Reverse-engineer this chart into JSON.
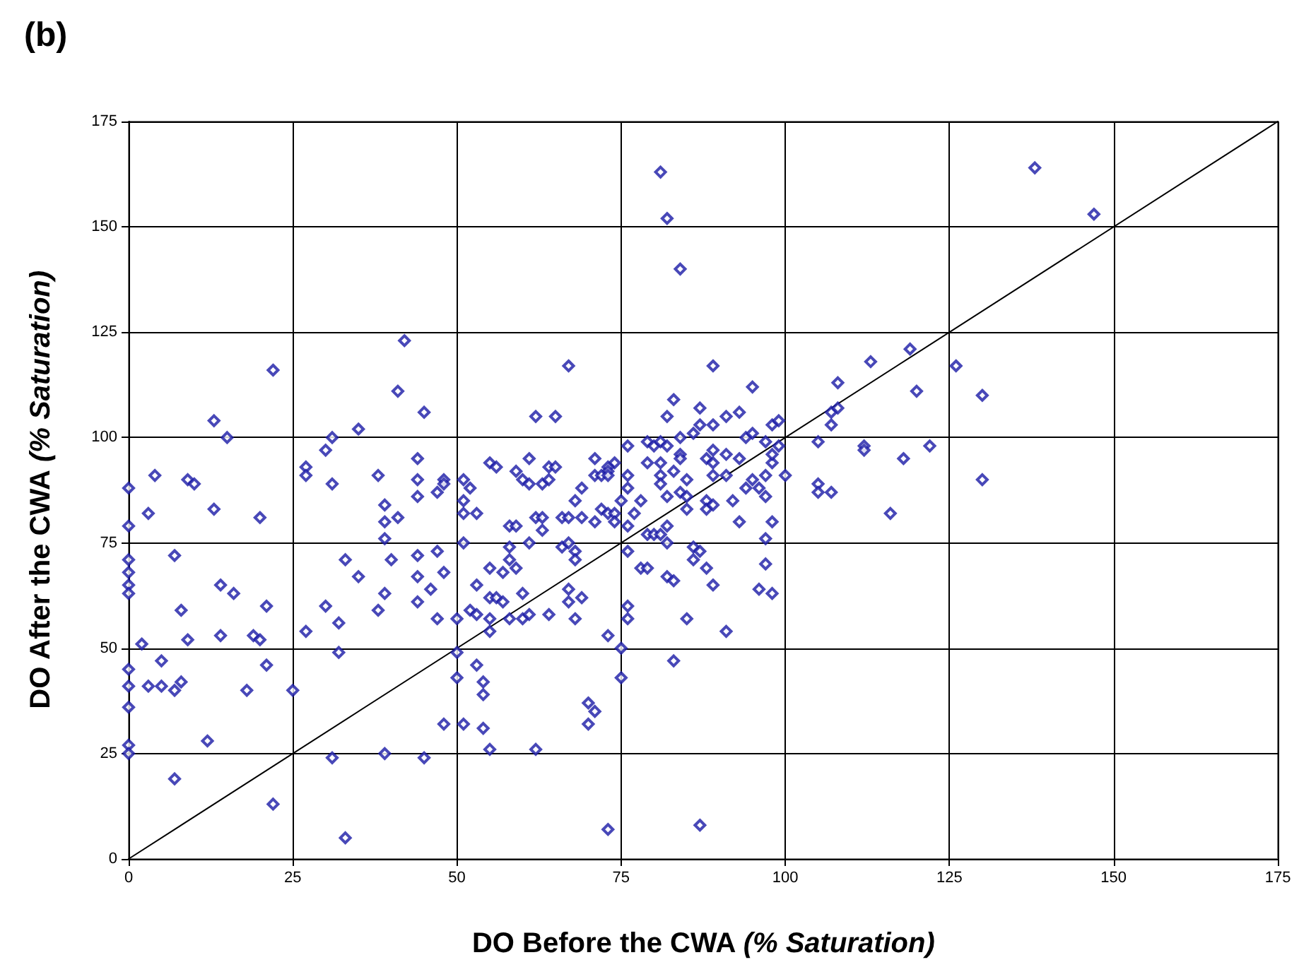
{
  "chart_data": {
    "type": "scatter",
    "title": "(b)",
    "xlabel": "DO Before the CWA (% Saturation)",
    "ylabel": "DO After the CWA (% Saturation)",
    "xlim": [
      0,
      175
    ],
    "ylim": [
      0,
      175
    ],
    "xticks": [
      0,
      25,
      50,
      75,
      100,
      125,
      150,
      175
    ],
    "yticks": [
      0,
      25,
      50,
      75,
      100,
      125,
      150,
      175
    ],
    "grid": true,
    "marker": "diamond",
    "series": [
      {
        "color": "#1a1aa6",
        "x": [
          0,
          3,
          13,
          20,
          0,
          7,
          0,
          0,
          0,
          0,
          14,
          16,
          8,
          21,
          2,
          9,
          14,
          19,
          20,
          5,
          0,
          0,
          0,
          3,
          5,
          7,
          8,
          18,
          21,
          0,
          0,
          12,
          7,
          22,
          27,
          25,
          31,
          39,
          45,
          33,
          30,
          32,
          32,
          33,
          35,
          38,
          39,
          39,
          39,
          39,
          40,
          41,
          44,
          47,
          44,
          44,
          44,
          46,
          47,
          48,
          47,
          48,
          51,
          50,
          50,
          50,
          51,
          53,
          52,
          53,
          51,
          51,
          53,
          55,
          55,
          55,
          55,
          53,
          54,
          54,
          54,
          55,
          56,
          57,
          57,
          58,
          59,
          58,
          60,
          58,
          60,
          61,
          58,
          59,
          61,
          62,
          63,
          63,
          64,
          62,
          66,
          67,
          68,
          68,
          67,
          67,
          69,
          68,
          70,
          70,
          71,
          73,
          73,
          66,
          67,
          68,
          69,
          69,
          71,
          72,
          73,
          74,
          74,
          75,
          76,
          76,
          78,
          79,
          76,
          76,
          75,
          75,
          77,
          78,
          79,
          80,
          81,
          82,
          82,
          82,
          82,
          83,
          85,
          83,
          86,
          87,
          86,
          88,
          89,
          87,
          84,
          85,
          85,
          88,
          88,
          22,
          13,
          15,
          4,
          9,
          10,
          42,
          41,
          45,
          35,
          31,
          30,
          27,
          27,
          31,
          38,
          44,
          44,
          48,
          48,
          51,
          52,
          67,
          62,
          65,
          55,
          56,
          61,
          59,
          64,
          65,
          60,
          61,
          63,
          64,
          71,
          74,
          73,
          73,
          71,
          72,
          73,
          76,
          79,
          81,
          79,
          76,
          76,
          81,
          83,
          81,
          82,
          84,
          82,
          83,
          80,
          81,
          84,
          86,
          87,
          87,
          82,
          84,
          84,
          88,
          81,
          85,
          138,
          147,
          89,
          95,
          89,
          91,
          93,
          94,
          95,
          98,
          99,
          97,
          99,
          89,
          91,
          89,
          93,
          98,
          98,
          100,
          97,
          91,
          89,
          95,
          94,
          96,
          105,
          107,
          107,
          108,
          108,
          113,
          112,
          112,
          118,
          122,
          119,
          120,
          126,
          130,
          130,
          105,
          107,
          105,
          116,
          97,
          92,
          89,
          93,
          98,
          97,
          97,
          96,
          98,
          91
        ],
        "values": [
          88,
          82,
          83,
          81,
          79,
          72,
          71,
          68,
          65,
          63,
          65,
          63,
          59,
          60,
          51,
          52,
          53,
          53,
          52,
          47,
          45,
          41,
          36,
          41,
          41,
          40,
          42,
          40,
          46,
          27,
          25,
          28,
          19,
          13,
          54,
          40,
          24,
          25,
          24,
          5,
          60,
          56,
          49,
          71,
          67,
          59,
          63,
          76,
          80,
          84,
          71,
          81,
          86,
          87,
          72,
          67,
          61,
          64,
          73,
          68,
          57,
          32,
          32,
          43,
          49,
          57,
          75,
          65,
          59,
          58,
          82,
          85,
          82,
          69,
          62,
          57,
          54,
          46,
          42,
          39,
          31,
          26,
          62,
          68,
          61,
          71,
          69,
          74,
          63,
          57,
          57,
          58,
          79,
          79,
          75,
          81,
          81,
          78,
          58,
          26,
          74,
          75,
          73,
          71,
          64,
          61,
          62,
          57,
          32,
          37,
          35,
          53,
          7,
          81,
          81,
          85,
          88,
          81,
          80,
          83,
          82,
          82,
          80,
          85,
          79,
          73,
          69,
          69,
          60,
          57,
          50,
          43,
          82,
          85,
          77,
          77,
          77,
          79,
          75,
          86,
          67,
          66,
          57,
          47,
          74,
          73,
          71,
          69,
          65,
          8,
          87,
          86,
          83,
          85,
          83,
          116,
          104,
          100,
          91,
          90,
          89,
          123,
          111,
          106,
          102,
          100,
          97,
          93,
          91,
          89,
          91,
          95,
          90,
          90,
          89,
          90,
          88,
          117,
          105,
          105,
          94,
          93,
          95,
          92,
          93,
          93,
          90,
          89,
          89,
          90,
          95,
          94,
          93,
          92,
          91,
          91,
          91,
          98,
          99,
          94,
          94,
          91,
          88,
          91,
          92,
          163,
          152,
          140,
          105,
          109,
          98,
          99,
          100,
          101,
          107,
          103,
          98,
          96,
          95,
          95,
          89,
          90,
          164,
          153,
          117,
          112,
          103,
          105,
          106,
          100,
          101,
          103,
          104,
          99,
          98,
          97,
          96,
          94,
          95,
          94,
          96,
          91,
          91,
          91,
          91,
          90,
          88,
          88,
          99,
          106,
          103,
          113,
          107,
          118,
          98,
          97,
          95,
          98,
          121,
          111,
          117,
          110,
          90,
          89,
          87,
          87,
          82,
          86,
          85,
          84,
          80,
          80,
          76,
          70,
          64,
          63,
          54
        ]
      },
      {
        "type": "line",
        "color": "#000000",
        "marker": "none",
        "x": [
          0,
          175
        ],
        "values": [
          0,
          175
        ]
      }
    ]
  }
}
